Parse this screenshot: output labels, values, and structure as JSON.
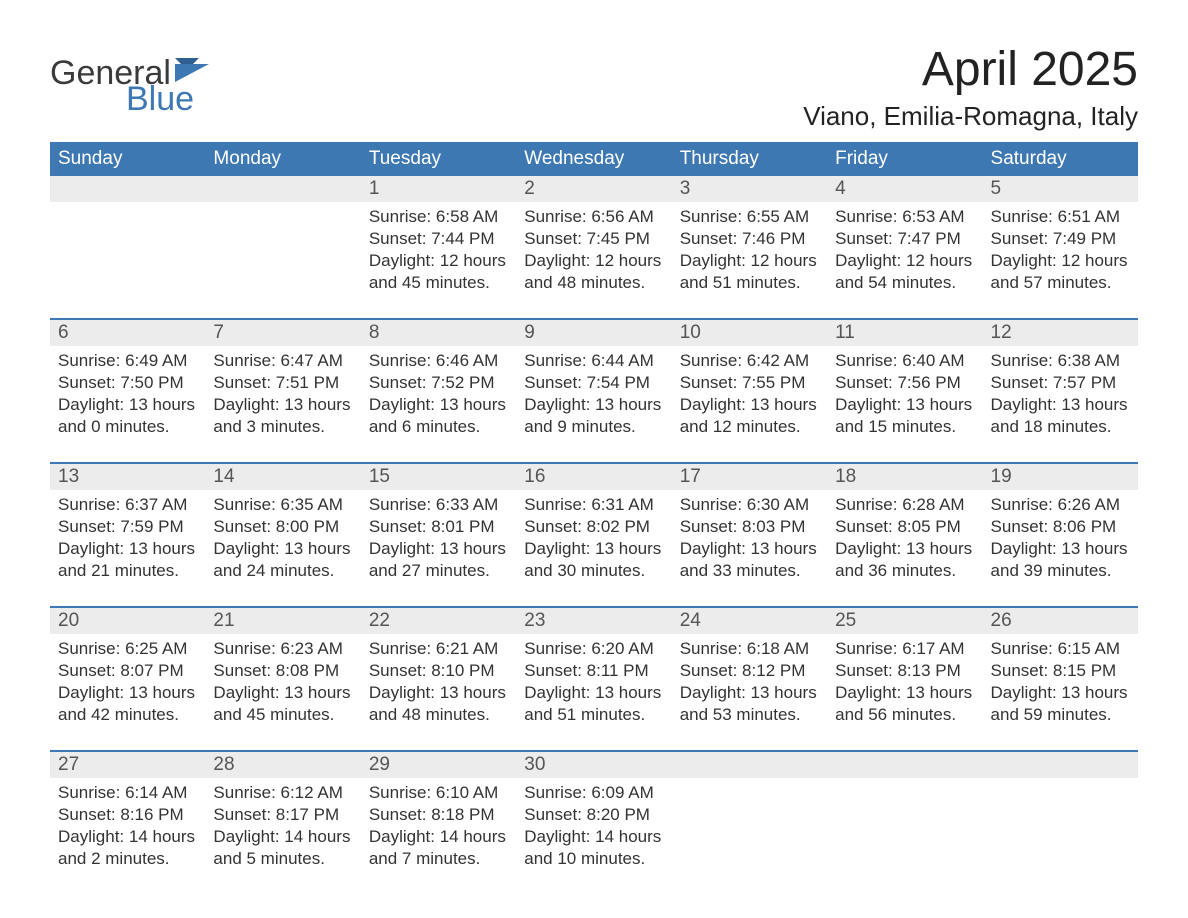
{
  "logo": {
    "word1": "General",
    "word2": "Blue"
  },
  "title": "April 2025",
  "location": "Viano, Emilia-Romagna, Italy",
  "colors": {
    "header_bg": "#3e78b3",
    "header_fg": "#ffffff",
    "daynum_bg": "#ececec",
    "text": "#333333",
    "logo_gray": "#3a3a3a",
    "logo_blue": "#3e78b3",
    "page_bg": "#ffffff"
  },
  "weekdays": [
    "Sunday",
    "Monday",
    "Tuesday",
    "Wednesday",
    "Thursday",
    "Friday",
    "Saturday"
  ],
  "weeks": [
    [
      null,
      null,
      {
        "n": "1",
        "sunrise": "Sunrise: 6:58 AM",
        "sunset": "Sunset: 7:44 PM",
        "day1": "Daylight: 12 hours",
        "day2": "and 45 minutes."
      },
      {
        "n": "2",
        "sunrise": "Sunrise: 6:56 AM",
        "sunset": "Sunset: 7:45 PM",
        "day1": "Daylight: 12 hours",
        "day2": "and 48 minutes."
      },
      {
        "n": "3",
        "sunrise": "Sunrise: 6:55 AM",
        "sunset": "Sunset: 7:46 PM",
        "day1": "Daylight: 12 hours",
        "day2": "and 51 minutes."
      },
      {
        "n": "4",
        "sunrise": "Sunrise: 6:53 AM",
        "sunset": "Sunset: 7:47 PM",
        "day1": "Daylight: 12 hours",
        "day2": "and 54 minutes."
      },
      {
        "n": "5",
        "sunrise": "Sunrise: 6:51 AM",
        "sunset": "Sunset: 7:49 PM",
        "day1": "Daylight: 12 hours",
        "day2": "and 57 minutes."
      }
    ],
    [
      {
        "n": "6",
        "sunrise": "Sunrise: 6:49 AM",
        "sunset": "Sunset: 7:50 PM",
        "day1": "Daylight: 13 hours",
        "day2": "and 0 minutes."
      },
      {
        "n": "7",
        "sunrise": "Sunrise: 6:47 AM",
        "sunset": "Sunset: 7:51 PM",
        "day1": "Daylight: 13 hours",
        "day2": "and 3 minutes."
      },
      {
        "n": "8",
        "sunrise": "Sunrise: 6:46 AM",
        "sunset": "Sunset: 7:52 PM",
        "day1": "Daylight: 13 hours",
        "day2": "and 6 minutes."
      },
      {
        "n": "9",
        "sunrise": "Sunrise: 6:44 AM",
        "sunset": "Sunset: 7:54 PM",
        "day1": "Daylight: 13 hours",
        "day2": "and 9 minutes."
      },
      {
        "n": "10",
        "sunrise": "Sunrise: 6:42 AM",
        "sunset": "Sunset: 7:55 PM",
        "day1": "Daylight: 13 hours",
        "day2": "and 12 minutes."
      },
      {
        "n": "11",
        "sunrise": "Sunrise: 6:40 AM",
        "sunset": "Sunset: 7:56 PM",
        "day1": "Daylight: 13 hours",
        "day2": "and 15 minutes."
      },
      {
        "n": "12",
        "sunrise": "Sunrise: 6:38 AM",
        "sunset": "Sunset: 7:57 PM",
        "day1": "Daylight: 13 hours",
        "day2": "and 18 minutes."
      }
    ],
    [
      {
        "n": "13",
        "sunrise": "Sunrise: 6:37 AM",
        "sunset": "Sunset: 7:59 PM",
        "day1": "Daylight: 13 hours",
        "day2": "and 21 minutes."
      },
      {
        "n": "14",
        "sunrise": "Sunrise: 6:35 AM",
        "sunset": "Sunset: 8:00 PM",
        "day1": "Daylight: 13 hours",
        "day2": "and 24 minutes."
      },
      {
        "n": "15",
        "sunrise": "Sunrise: 6:33 AM",
        "sunset": "Sunset: 8:01 PM",
        "day1": "Daylight: 13 hours",
        "day2": "and 27 minutes."
      },
      {
        "n": "16",
        "sunrise": "Sunrise: 6:31 AM",
        "sunset": "Sunset: 8:02 PM",
        "day1": "Daylight: 13 hours",
        "day2": "and 30 minutes."
      },
      {
        "n": "17",
        "sunrise": "Sunrise: 6:30 AM",
        "sunset": "Sunset: 8:03 PM",
        "day1": "Daylight: 13 hours",
        "day2": "and 33 minutes."
      },
      {
        "n": "18",
        "sunrise": "Sunrise: 6:28 AM",
        "sunset": "Sunset: 8:05 PM",
        "day1": "Daylight: 13 hours",
        "day2": "and 36 minutes."
      },
      {
        "n": "19",
        "sunrise": "Sunrise: 6:26 AM",
        "sunset": "Sunset: 8:06 PM",
        "day1": "Daylight: 13 hours",
        "day2": "and 39 minutes."
      }
    ],
    [
      {
        "n": "20",
        "sunrise": "Sunrise: 6:25 AM",
        "sunset": "Sunset: 8:07 PM",
        "day1": "Daylight: 13 hours",
        "day2": "and 42 minutes."
      },
      {
        "n": "21",
        "sunrise": "Sunrise: 6:23 AM",
        "sunset": "Sunset: 8:08 PM",
        "day1": "Daylight: 13 hours",
        "day2": "and 45 minutes."
      },
      {
        "n": "22",
        "sunrise": "Sunrise: 6:21 AM",
        "sunset": "Sunset: 8:10 PM",
        "day1": "Daylight: 13 hours",
        "day2": "and 48 minutes."
      },
      {
        "n": "23",
        "sunrise": "Sunrise: 6:20 AM",
        "sunset": "Sunset: 8:11 PM",
        "day1": "Daylight: 13 hours",
        "day2": "and 51 minutes."
      },
      {
        "n": "24",
        "sunrise": "Sunrise: 6:18 AM",
        "sunset": "Sunset: 8:12 PM",
        "day1": "Daylight: 13 hours",
        "day2": "and 53 minutes."
      },
      {
        "n": "25",
        "sunrise": "Sunrise: 6:17 AM",
        "sunset": "Sunset: 8:13 PM",
        "day1": "Daylight: 13 hours",
        "day2": "and 56 minutes."
      },
      {
        "n": "26",
        "sunrise": "Sunrise: 6:15 AM",
        "sunset": "Sunset: 8:15 PM",
        "day1": "Daylight: 13 hours",
        "day2": "and 59 minutes."
      }
    ],
    [
      {
        "n": "27",
        "sunrise": "Sunrise: 6:14 AM",
        "sunset": "Sunset: 8:16 PM",
        "day1": "Daylight: 14 hours",
        "day2": "and 2 minutes."
      },
      {
        "n": "28",
        "sunrise": "Sunrise: 6:12 AM",
        "sunset": "Sunset: 8:17 PM",
        "day1": "Daylight: 14 hours",
        "day2": "and 5 minutes."
      },
      {
        "n": "29",
        "sunrise": "Sunrise: 6:10 AM",
        "sunset": "Sunset: 8:18 PM",
        "day1": "Daylight: 14 hours",
        "day2": "and 7 minutes."
      },
      {
        "n": "30",
        "sunrise": "Sunrise: 6:09 AM",
        "sunset": "Sunset: 8:20 PM",
        "day1": "Daylight: 14 hours",
        "day2": "and 10 minutes."
      },
      null,
      null,
      null
    ]
  ]
}
